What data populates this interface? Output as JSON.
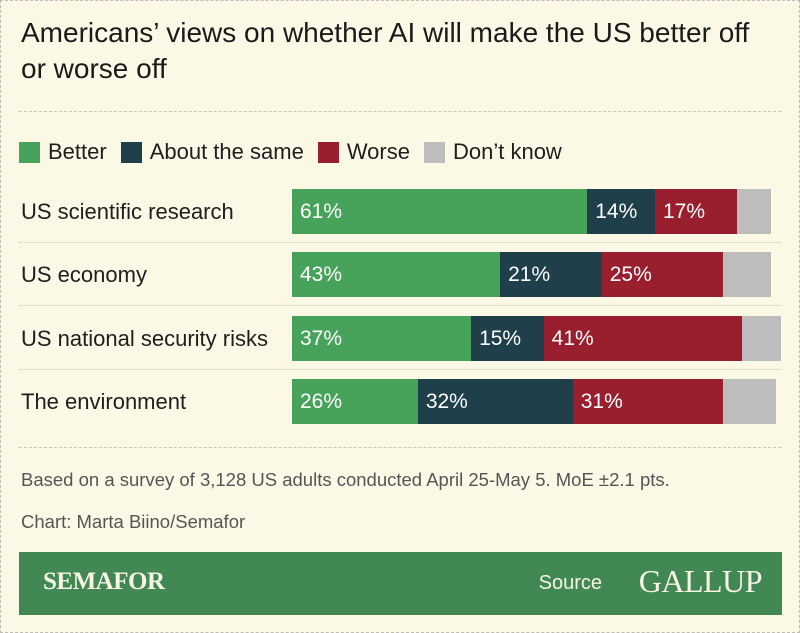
{
  "chart_data": {
    "type": "bar",
    "orientation": "horizontal",
    "stacked": true,
    "title": "Americans’ views on whether AI will make the US better off or worse off",
    "categories": [
      "US scientific research",
      "US economy",
      "US national security risks",
      "The environment"
    ],
    "series": [
      {
        "name": "Better",
        "color": "#48a35a",
        "values": [
          61,
          43,
          37,
          26
        ],
        "labels": [
          "61%",
          "43%",
          "37%",
          "26%"
        ]
      },
      {
        "name": "About the same",
        "color": "#1f3f4a",
        "values": [
          14,
          21,
          15,
          32
        ],
        "labels": [
          "14%",
          "21%",
          "15%",
          "32%"
        ]
      },
      {
        "name": "Worse",
        "color": "#9a1f2e",
        "values": [
          17,
          25,
          41,
          31
        ],
        "labels": [
          "17%",
          "25%",
          "41%",
          "31%"
        ]
      },
      {
        "name": "Don’t know",
        "color": "#bdbdbd",
        "values": [
          7,
          10,
          8,
          11
        ],
        "labels": [
          "",
          "",
          "",
          ""
        ]
      }
    ],
    "legend_position": "top-left",
    "grid": false
  },
  "note": "Based on a survey of 3,128 US adults conducted April 25-May 5. MoE ±2.1 pts.",
  "credit": "Chart: Marta Biino/Semafor",
  "footer": {
    "brand": "SEMAFOR",
    "source_label": "Source",
    "source": "GALLUP",
    "color": "#418855"
  }
}
